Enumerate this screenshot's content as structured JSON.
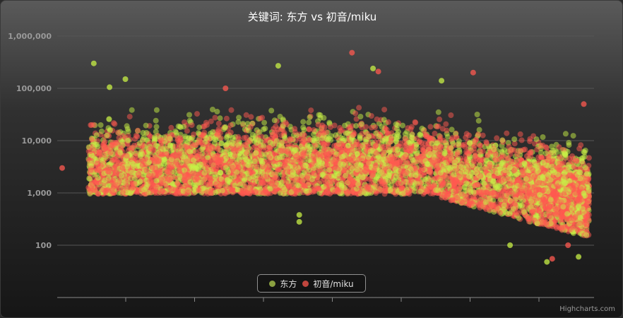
{
  "chart_data": {
    "type": "scatter",
    "title": "关键词: 东方 vs 初音/miku",
    "xlabel": "",
    "ylabel": "",
    "y_scale": "log",
    "ylim": [
      10,
      1000000
    ],
    "y_ticks": [
      100,
      1000,
      10000,
      100000,
      1000000
    ],
    "y_tick_labels": [
      "100",
      "1,000",
      "10,000",
      "100,000",
      "1,000,000"
    ],
    "x_tick_count": 7,
    "x_tick_labels": [],
    "grid": true,
    "legend_position": "bottom-center",
    "series": [
      {
        "name": "东方",
        "color": "#c8f046",
        "marker_opacity": 0.5,
        "approx_point_count": 2800,
        "notable_points": [
          {
            "x": 0.06,
            "y": 300000
          },
          {
            "x": 0.12,
            "y": 150000
          },
          {
            "x": 0.09,
            "y": 105000
          },
          {
            "x": 0.41,
            "y": 270000
          },
          {
            "x": 0.59,
            "y": 240000
          },
          {
            "x": 0.72,
            "y": 140000
          },
          {
            "x": 0.45,
            "y": 380
          },
          {
            "x": 0.45,
            "y": 280
          },
          {
            "x": 0.85,
            "y": 100
          },
          {
            "x": 0.92,
            "y": 48
          },
          {
            "x": 0.98,
            "y": 60
          }
        ],
        "distribution": [
          {
            "x_range": [
              0.0,
              0.5
            ],
            "y_typical": [
              1000,
              20000
            ]
          },
          {
            "x_range": [
              0.5,
              0.72
            ],
            "y_typical": [
              1000,
              30000
            ]
          },
          {
            "x_range": [
              0.72,
              1.0
            ],
            "y_typical": [
              200,
              20000
            ]
          }
        ]
      },
      {
        "name": "初音/miku",
        "color": "#ff5a50",
        "marker_opacity": 0.5,
        "approx_point_count": 4200,
        "notable_points": [
          {
            "x": 0.55,
            "y": 480000
          },
          {
            "x": 0.78,
            "y": 200000
          },
          {
            "x": 0.6,
            "y": 210000
          },
          {
            "x": 0.31,
            "y": 100000
          },
          {
            "x": 0.0,
            "y": 3000
          },
          {
            "x": 0.93,
            "y": 55
          },
          {
            "x": 0.96,
            "y": 100
          },
          {
            "x": 0.99,
            "y": 50000
          }
        ],
        "distribution": [
          {
            "x_range": [
              0.0,
              0.5
            ],
            "y_typical": [
              1200,
              15000
            ]
          },
          {
            "x_range": [
              0.5,
              0.72
            ],
            "y_typical": [
              1000,
              25000
            ]
          },
          {
            "x_range": [
              0.72,
              1.0
            ],
            "y_typical": [
              150,
              15000
            ]
          }
        ]
      }
    ]
  },
  "legend": {
    "items": [
      {
        "label": "东方",
        "color": "#8aa040"
      },
      {
        "label": "初音/miku",
        "color": "#c0453d"
      }
    ]
  },
  "credits": "Highcharts.com"
}
